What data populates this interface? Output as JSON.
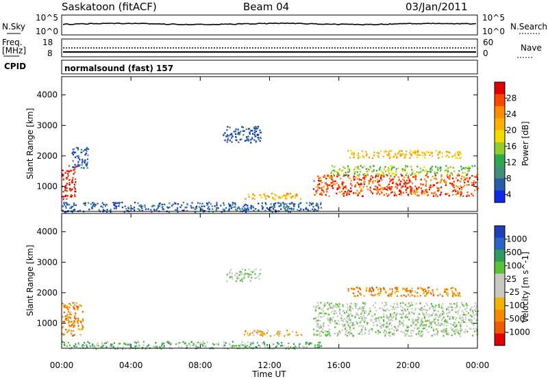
{
  "header": {
    "title": "Saskatoon (fitACF)",
    "beam": "Beam 04",
    "date": "03/Jan/2011"
  },
  "noise_panel": {
    "left_label": "N.Sky",
    "left_ticks": [
      "10^5",
      "10^0"
    ],
    "right_ticks": [
      "10^5",
      "10^0"
    ],
    "right_label": "N.Search"
  },
  "freq_panel": {
    "left_label_line1": "Freq.",
    "left_label_line2": "[MHz]",
    "left_ticks": [
      18,
      8
    ],
    "right_ticks": [
      60,
      0
    ],
    "right_label": "Nave"
  },
  "cpid": {
    "label": "CPID",
    "value": "normalsound (fast) 157"
  },
  "chart_data": [
    {
      "type": "heatmap",
      "name": "power",
      "ylabel": "Slant Range [km]",
      "yticks": [
        1000,
        2000,
        3000,
        4000
      ],
      "ylim": [
        180,
        4600
      ],
      "xlim_hours": [
        0,
        24
      ],
      "xticks": [
        "00:00",
        "04:00",
        "08:00",
        "12:00",
        "16:00",
        "20:00",
        "00:00"
      ],
      "colorbar_label": "Power [dB]",
      "colorbar_ticks": [
        "28",
        "24",
        "20",
        "16",
        "12",
        "8",
        "4"
      ],
      "colorbar_colors": [
        "#e00000",
        "#ff4500",
        "#ff8c00",
        "#ffb000",
        "#f2dc00",
        "#92cc2c",
        "#2ea84e",
        "#3f8f7c",
        "#2a5caa",
        "#0a2ce6"
      ],
      "regions": [
        {
          "t0": 0.0,
          "t1": 0.8,
          "r0": 600,
          "r1": 1700,
          "level": 0
        },
        {
          "t0": 0.5,
          "t1": 1.5,
          "r0": 1600,
          "r1": 2300,
          "level": 8
        },
        {
          "t0": 0.0,
          "t1": 15.0,
          "r0": 180,
          "r1": 500,
          "level": 8
        },
        {
          "t0": 9.3,
          "t1": 11.5,
          "r0": 2450,
          "r1": 3000,
          "level": 8
        },
        {
          "t0": 10.5,
          "t1": 13.8,
          "r0": 600,
          "r1": 800,
          "level": 3
        },
        {
          "t0": 14.5,
          "t1": 24.0,
          "r0": 700,
          "r1": 1400,
          "level": 1
        },
        {
          "t0": 15.5,
          "t1": 24.0,
          "r0": 1400,
          "r1": 1700,
          "level": 5
        },
        {
          "t0": 16.5,
          "t1": 23.0,
          "r0": 1950,
          "r1": 2200,
          "level": 3
        }
      ]
    },
    {
      "type": "heatmap",
      "name": "velocity",
      "ylabel": "Slant Range [km]",
      "yticks": [
        1000,
        2000,
        3000,
        4000
      ],
      "ylim": [
        180,
        4600
      ],
      "xlim_hours": [
        0,
        24
      ],
      "xticks": [
        "00:00",
        "04:00",
        "08:00",
        "12:00",
        "16:00",
        "20:00",
        "00:00"
      ],
      "xlabel": "Time UT",
      "colorbar_label": "Velocity [m s^-1]",
      "colorbar_ticks": [
        "1000",
        "500",
        "100",
        "25",
        "-25",
        "-100",
        "-500",
        "-1000"
      ],
      "colorbar_colors": [
        "#1f3fb8",
        "#2c63c8",
        "#2e9c5c",
        "#58c23a",
        "#c8c8c0",
        "#c8c8c0",
        "#f2b400",
        "#f58a00",
        "#f05a00",
        "#e00000"
      ],
      "regions": [
        {
          "t0": 0.0,
          "t1": 1.2,
          "r0": 600,
          "r1": 1700,
          "level": 7
        },
        {
          "t0": 0.0,
          "t1": 15.0,
          "r0": 180,
          "r1": 420,
          "level": 3
        },
        {
          "t0": 10.5,
          "t1": 13.8,
          "r0": 600,
          "r1": 800,
          "level": 6
        },
        {
          "t0": 9.5,
          "t1": 11.5,
          "r0": 2400,
          "r1": 2800,
          "level": 4
        },
        {
          "t0": 14.5,
          "t1": 24.0,
          "r0": 600,
          "r1": 1700,
          "level": 4
        },
        {
          "t0": 16.5,
          "t1": 23.0,
          "r0": 1900,
          "r1": 2200,
          "level": 7
        }
      ]
    }
  ]
}
